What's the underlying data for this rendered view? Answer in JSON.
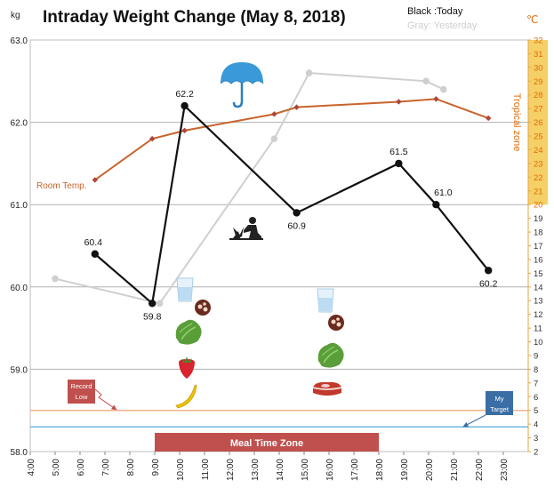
{
  "chart_data": {
    "type": "line",
    "title": "Intraday Weight Change (May 8, 2018)",
    "legend": {
      "entries": [
        {
          "label": "Black :Today",
          "color": "#111111"
        },
        {
          "label": "Gray: Yesterday",
          "color": "#cfcfcf"
        }
      ],
      "placement": "top-right"
    },
    "x_axis": {
      "range": [
        4,
        24
      ],
      "tick_labels": [
        "4:00",
        "5:00",
        "6:00",
        "7:00",
        "8:00",
        "9:00",
        "10:00",
        "11:00",
        "12:00",
        "13:00",
        "14:00",
        "15:00",
        "16:00",
        "17:00",
        "18:00",
        "19:00",
        "20:00",
        "21:00",
        "22:00",
        "23:00"
      ]
    },
    "y_left": {
      "unit": "kg",
      "range": [
        58.0,
        63.0
      ],
      "tick_labels": [
        "58.0",
        "59.0",
        "60.0",
        "61.0",
        "62.0",
        "63.0"
      ],
      "grid": true
    },
    "y_right": {
      "unit": "℃",
      "range": [
        2,
        32
      ],
      "label": "Tropical zone",
      "tropical_range": [
        20,
        32
      ]
    },
    "series": [
      {
        "key": "today",
        "color": "#111111",
        "points": [
          [
            6.6,
            60.4
          ],
          [
            8.9,
            59.8
          ],
          [
            10.2,
            62.2
          ],
          [
            14.7,
            60.9
          ],
          [
            18.8,
            61.5
          ],
          [
            20.3,
            61.0
          ],
          [
            22.4,
            60.2
          ]
        ],
        "labels": [
          "60.4",
          "59.8",
          "62.2",
          "60.9",
          "61.5",
          "61.0",
          "60.2"
        ]
      },
      {
        "key": "yesterday",
        "color": "#cfcfcf",
        "points": [
          [
            5.0,
            60.1
          ],
          [
            9.2,
            59.8
          ],
          [
            13.8,
            61.8
          ],
          [
            15.2,
            62.6
          ],
          [
            19.9,
            62.5
          ],
          [
            20.6,
            62.4
          ]
        ]
      },
      {
        "key": "room_temp",
        "name": "Room Temp.",
        "color": "#c8642a",
        "marker_color": "#b0453a",
        "axis": "right",
        "points": [
          [
            6.6,
            21.8
          ],
          [
            8.9,
            24.8
          ],
          [
            10.2,
            25.4
          ],
          [
            13.8,
            26.6
          ],
          [
            14.7,
            27.1
          ],
          [
            18.8,
            27.5
          ],
          [
            20.3,
            27.7
          ],
          [
            22.4,
            26.3
          ]
        ]
      }
    ],
    "reference_lines": [
      {
        "label": "Record Low",
        "value": 58.5,
        "color": "#f2b58c"
      },
      {
        "label": "My Target",
        "value": 58.3,
        "color": "#70b8e0"
      }
    ],
    "band": {
      "label": "Meal Time Zone",
      "x_start": 9.0,
      "x_end": 18.0,
      "color": "#c0504d"
    },
    "icons": {
      "weather": "umbrella-icon",
      "activity": "gardening-icon",
      "meal_1": [
        "water-glass-icon",
        "sausage-icon",
        "lettuce-icon",
        "strawberry-icon",
        "banana-icon"
      ],
      "meal_2": [
        "water-glass-icon",
        "sausage-icon",
        "lettuce-icon",
        "steak-icon"
      ]
    },
    "colors": {
      "gridline": "#b0b0b0",
      "plot_border": "#bfbfbf",
      "tropical_zone": "#f2c84b",
      "tropical_text": "#e46c0a",
      "callout": "#c0504d",
      "target_callout": "#3a6ea5"
    }
  }
}
